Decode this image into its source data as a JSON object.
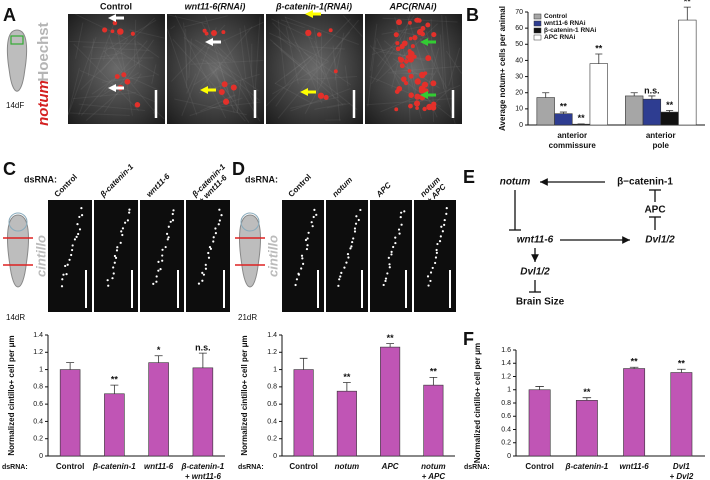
{
  "panels": {
    "a": "A",
    "b": "B",
    "c": "C",
    "d": "D",
    "e": "E",
    "f": "F"
  },
  "panel_a": {
    "stain_labels": [
      "Hoechst",
      "notum"
    ],
    "stage": "14dF",
    "titles": [
      "Control",
      "wnt11-6(RNAi)",
      "β-catenin-1(RNAi)",
      "APC(RNAi)"
    ]
  },
  "panel_c": {
    "dsrna_label": "dsRNA:",
    "stain": "cintillo",
    "stage": "14dR",
    "titles": [
      "Control",
      "β-catenin-1",
      "wnt11-6",
      [
        "β-catenin-1",
        "+ wnt11-6"
      ]
    ]
  },
  "panel_d": {
    "dsrna_label": "dsRNA:",
    "stain": "cintillo",
    "stage": "21dR",
    "titles": [
      "Control",
      "notum",
      "APC",
      [
        "notum",
        "+ APC"
      ]
    ]
  },
  "panel_e": {
    "nodes": [
      "notum",
      "β−catenin-1",
      "APC",
      "wnt11-6",
      "Dvl1/2",
      "Dvl1/2",
      "Brain Size"
    ]
  },
  "chart_data": [
    {
      "type": "grouped-bar",
      "ylabel": "Average notum+ cells per animal",
      "categories": [
        [
          "anterior",
          "commissure"
        ],
        [
          "anterior",
          "pole"
        ]
      ],
      "series": [
        {
          "name": "Control",
          "color": "#a6a6a6",
          "values": [
            17,
            18
          ],
          "errors": [
            3,
            2
          ],
          "annotations": [
            null,
            null
          ]
        },
        {
          "name": "wnt11-6 RNAi",
          "color": "#2e3d91",
          "values": [
            7,
            16
          ],
          "errors": [
            1,
            2
          ],
          "annotations": [
            "**",
            "n.s."
          ]
        },
        {
          "name": "β-catenin-1 RNAi",
          "color": "#111111",
          "values": [
            0.5,
            8
          ],
          "errors": [
            0.2,
            1
          ],
          "annotations": [
            "**",
            "**"
          ]
        },
        {
          "name": "APC RNAi",
          "color": "#ffffff",
          "values": [
            38,
            65
          ],
          "errors": [
            6,
            8
          ],
          "annotations": [
            "**",
            "**"
          ]
        }
      ],
      "ylim": [
        0,
        70
      ],
      "yticks": [
        0,
        10,
        20,
        30,
        40,
        50,
        60,
        70
      ]
    },
    {
      "type": "bar",
      "ylabel": "Normalized cintillo+ cell per μm",
      "xlabel": "dsRNA:",
      "categories": [
        "Control",
        "β-catenin-1",
        "wnt11-6",
        [
          "β-catenin-1",
          "+ wnt11-6"
        ]
      ],
      "values": [
        1.0,
        0.72,
        1.08,
        1.02
      ],
      "errors": [
        0.08,
        0.1,
        0.08,
        0.17
      ],
      "annotations": [
        null,
        "**",
        "*",
        "n.s."
      ],
      "color": "#c055b5",
      "ylim": [
        0,
        1.4
      ],
      "yticks": [
        0,
        0.2,
        0.4,
        0.6,
        0.8,
        1,
        1.2,
        1.4
      ]
    },
    {
      "type": "bar",
      "ylabel": "Normalized cintillo+ cell per μm",
      "xlabel": "dsRNA:",
      "categories": [
        "Control",
        "notum",
        "APC",
        [
          "notum",
          "+ APC"
        ]
      ],
      "values": [
        1.0,
        0.75,
        1.26,
        0.82
      ],
      "errors": [
        0.13,
        0.1,
        0.04,
        0.09
      ],
      "annotations": [
        null,
        "**",
        "**",
        "**"
      ],
      "color": "#c055b5",
      "ylim": [
        0,
        1.4
      ],
      "yticks": [
        0,
        0.2,
        0.4,
        0.6,
        0.8,
        1,
        1.2,
        1.4
      ]
    },
    {
      "type": "bar",
      "ylabel": "Normalized cintillo+ cell per μm",
      "xlabel": "dsRNA:",
      "categories": [
        "Control",
        "β-catenin-1",
        "wnt11-6",
        [
          "Dvl1",
          "+ Dvl2"
        ]
      ],
      "values": [
        1.0,
        0.84,
        1.32,
        1.26
      ],
      "errors": [
        0.05,
        0.04,
        0.02,
        0.05
      ],
      "annotations": [
        null,
        "**",
        "**",
        "**"
      ],
      "color": "#c055b5",
      "ylim": [
        0,
        1.6
      ],
      "yticks": [
        0,
        0.2,
        0.4,
        0.6,
        0.8,
        1,
        1.2,
        1.4,
        1.6
      ]
    }
  ]
}
